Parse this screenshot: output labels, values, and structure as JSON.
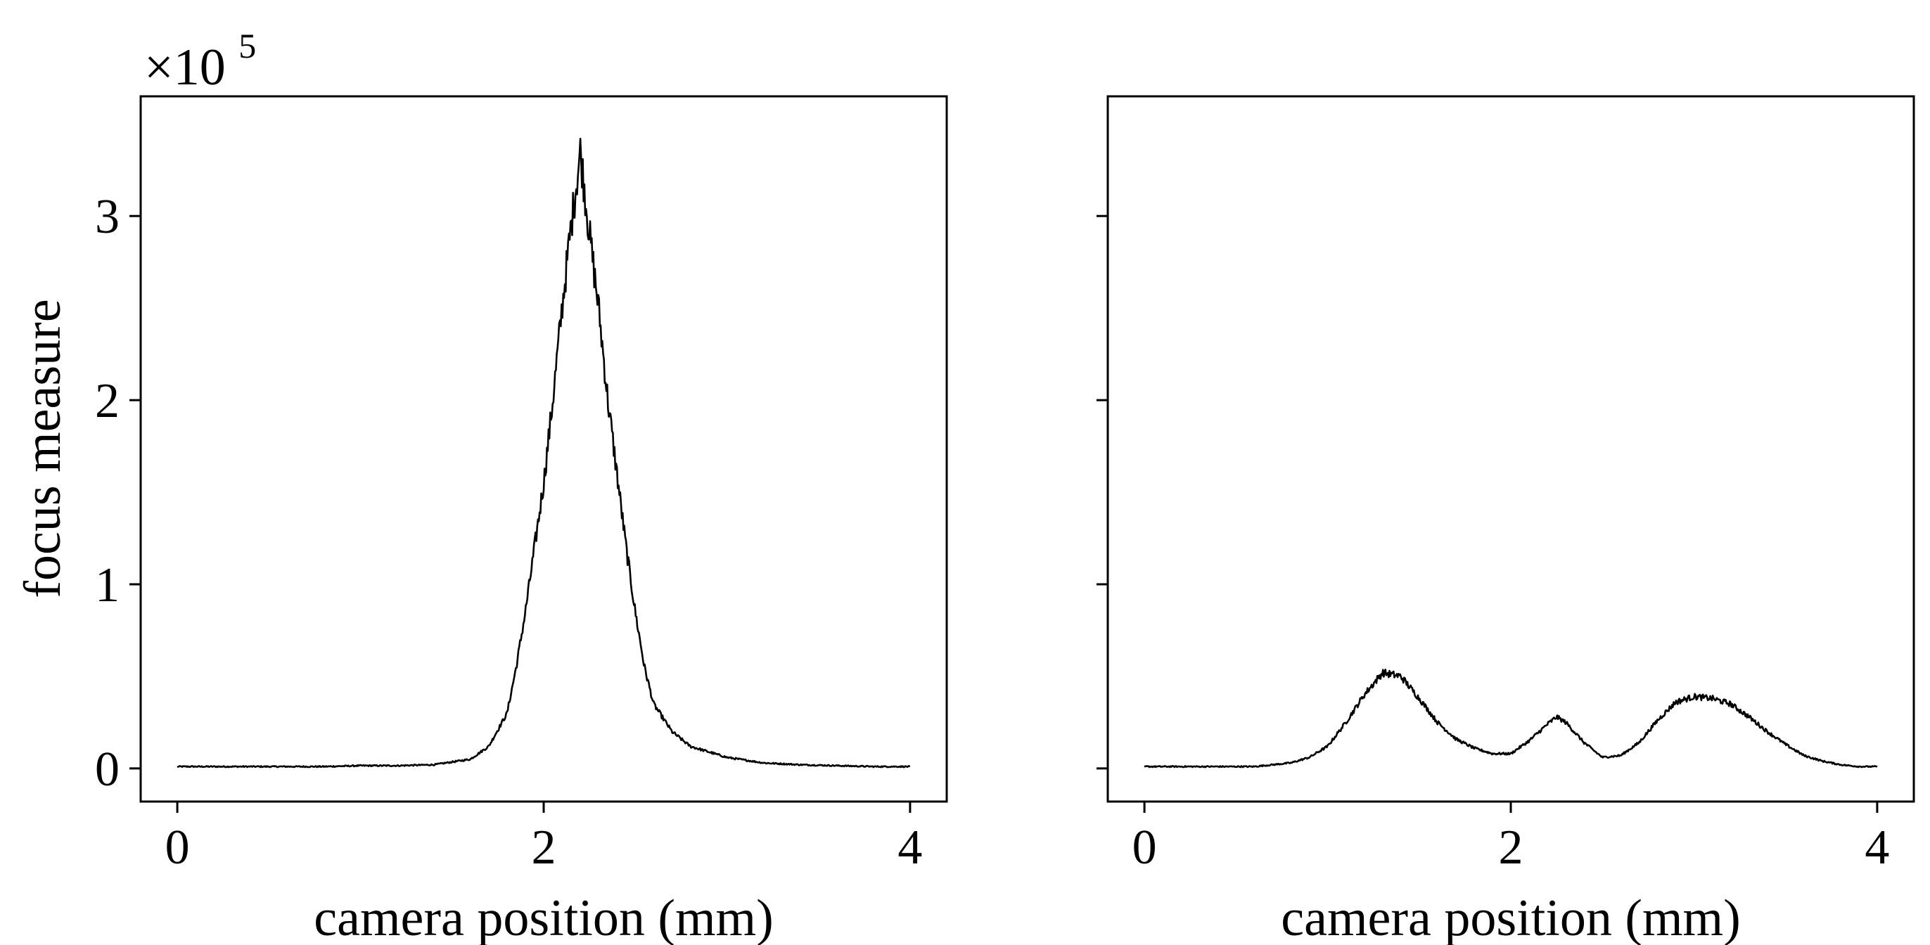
{
  "chart_data": [
    {
      "type": "line",
      "xlabel": "camera position (mm)",
      "ylabel": "focus measure",
      "y_multiplier": "×10",
      "y_multiplier_exponent": "5",
      "xlim": [
        -0.2,
        4.2
      ],
      "ylim": [
        -0.18,
        3.65
      ],
      "xticks": [
        0,
        2,
        4
      ],
      "xtick_labels": [
        "0",
        "2",
        "4"
      ],
      "yticks": [
        0,
        1,
        2,
        3
      ],
      "ytick_labels": [
        "0",
        "1",
        "2",
        "3"
      ],
      "grid": false,
      "series": [
        {
          "x": [
            0.0,
            0.2,
            0.4,
            0.6,
            0.8,
            1.0,
            1.2,
            1.4,
            1.6,
            1.7,
            1.8,
            1.85,
            1.9,
            1.95,
            2.0,
            2.05,
            2.1,
            2.15,
            2.2,
            2.25,
            2.3,
            2.35,
            2.4,
            2.45,
            2.5,
            2.55,
            2.6,
            2.7,
            2.8,
            3.0,
            3.2,
            3.4,
            3.6,
            3.8,
            4.0
          ],
          "y": [
            0.01,
            0.01,
            0.01,
            0.01,
            0.01,
            0.015,
            0.015,
            0.02,
            0.05,
            0.12,
            0.3,
            0.55,
            0.85,
            1.2,
            1.55,
            2.0,
            2.5,
            2.95,
            3.35,
            2.9,
            2.5,
            2.0,
            1.6,
            1.2,
            0.85,
            0.55,
            0.35,
            0.2,
            0.12,
            0.06,
            0.03,
            0.02,
            0.015,
            0.01,
            0.01
          ]
        }
      ]
    },
    {
      "type": "line",
      "xlabel": "camera position (mm)",
      "ylabel": "",
      "xlim": [
        -0.2,
        4.2
      ],
      "ylim": [
        -0.18,
        3.65
      ],
      "xticks": [
        0,
        2,
        4
      ],
      "xtick_labels": [
        "0",
        "2",
        "4"
      ],
      "yticks": [
        0,
        1,
        2,
        3
      ],
      "ytick_labels": [
        "",
        "",
        "",
        ""
      ],
      "grid": false,
      "series": [
        {
          "x": [
            0.0,
            0.2,
            0.4,
            0.6,
            0.8,
            0.9,
            1.0,
            1.1,
            1.2,
            1.3,
            1.4,
            1.5,
            1.6,
            1.7,
            1.8,
            1.9,
            2.0,
            2.1,
            2.2,
            2.25,
            2.3,
            2.4,
            2.5,
            2.6,
            2.7,
            2.8,
            2.9,
            3.0,
            3.1,
            3.2,
            3.3,
            3.4,
            3.5,
            3.6,
            3.7,
            3.8,
            3.9,
            4.0
          ],
          "y": [
            0.01,
            0.01,
            0.01,
            0.01,
            0.03,
            0.06,
            0.12,
            0.25,
            0.4,
            0.52,
            0.5,
            0.38,
            0.25,
            0.16,
            0.11,
            0.08,
            0.08,
            0.15,
            0.24,
            0.28,
            0.25,
            0.14,
            0.06,
            0.07,
            0.14,
            0.26,
            0.36,
            0.39,
            0.38,
            0.35,
            0.28,
            0.2,
            0.13,
            0.07,
            0.04,
            0.02,
            0.01,
            0.01
          ]
        }
      ]
    }
  ]
}
